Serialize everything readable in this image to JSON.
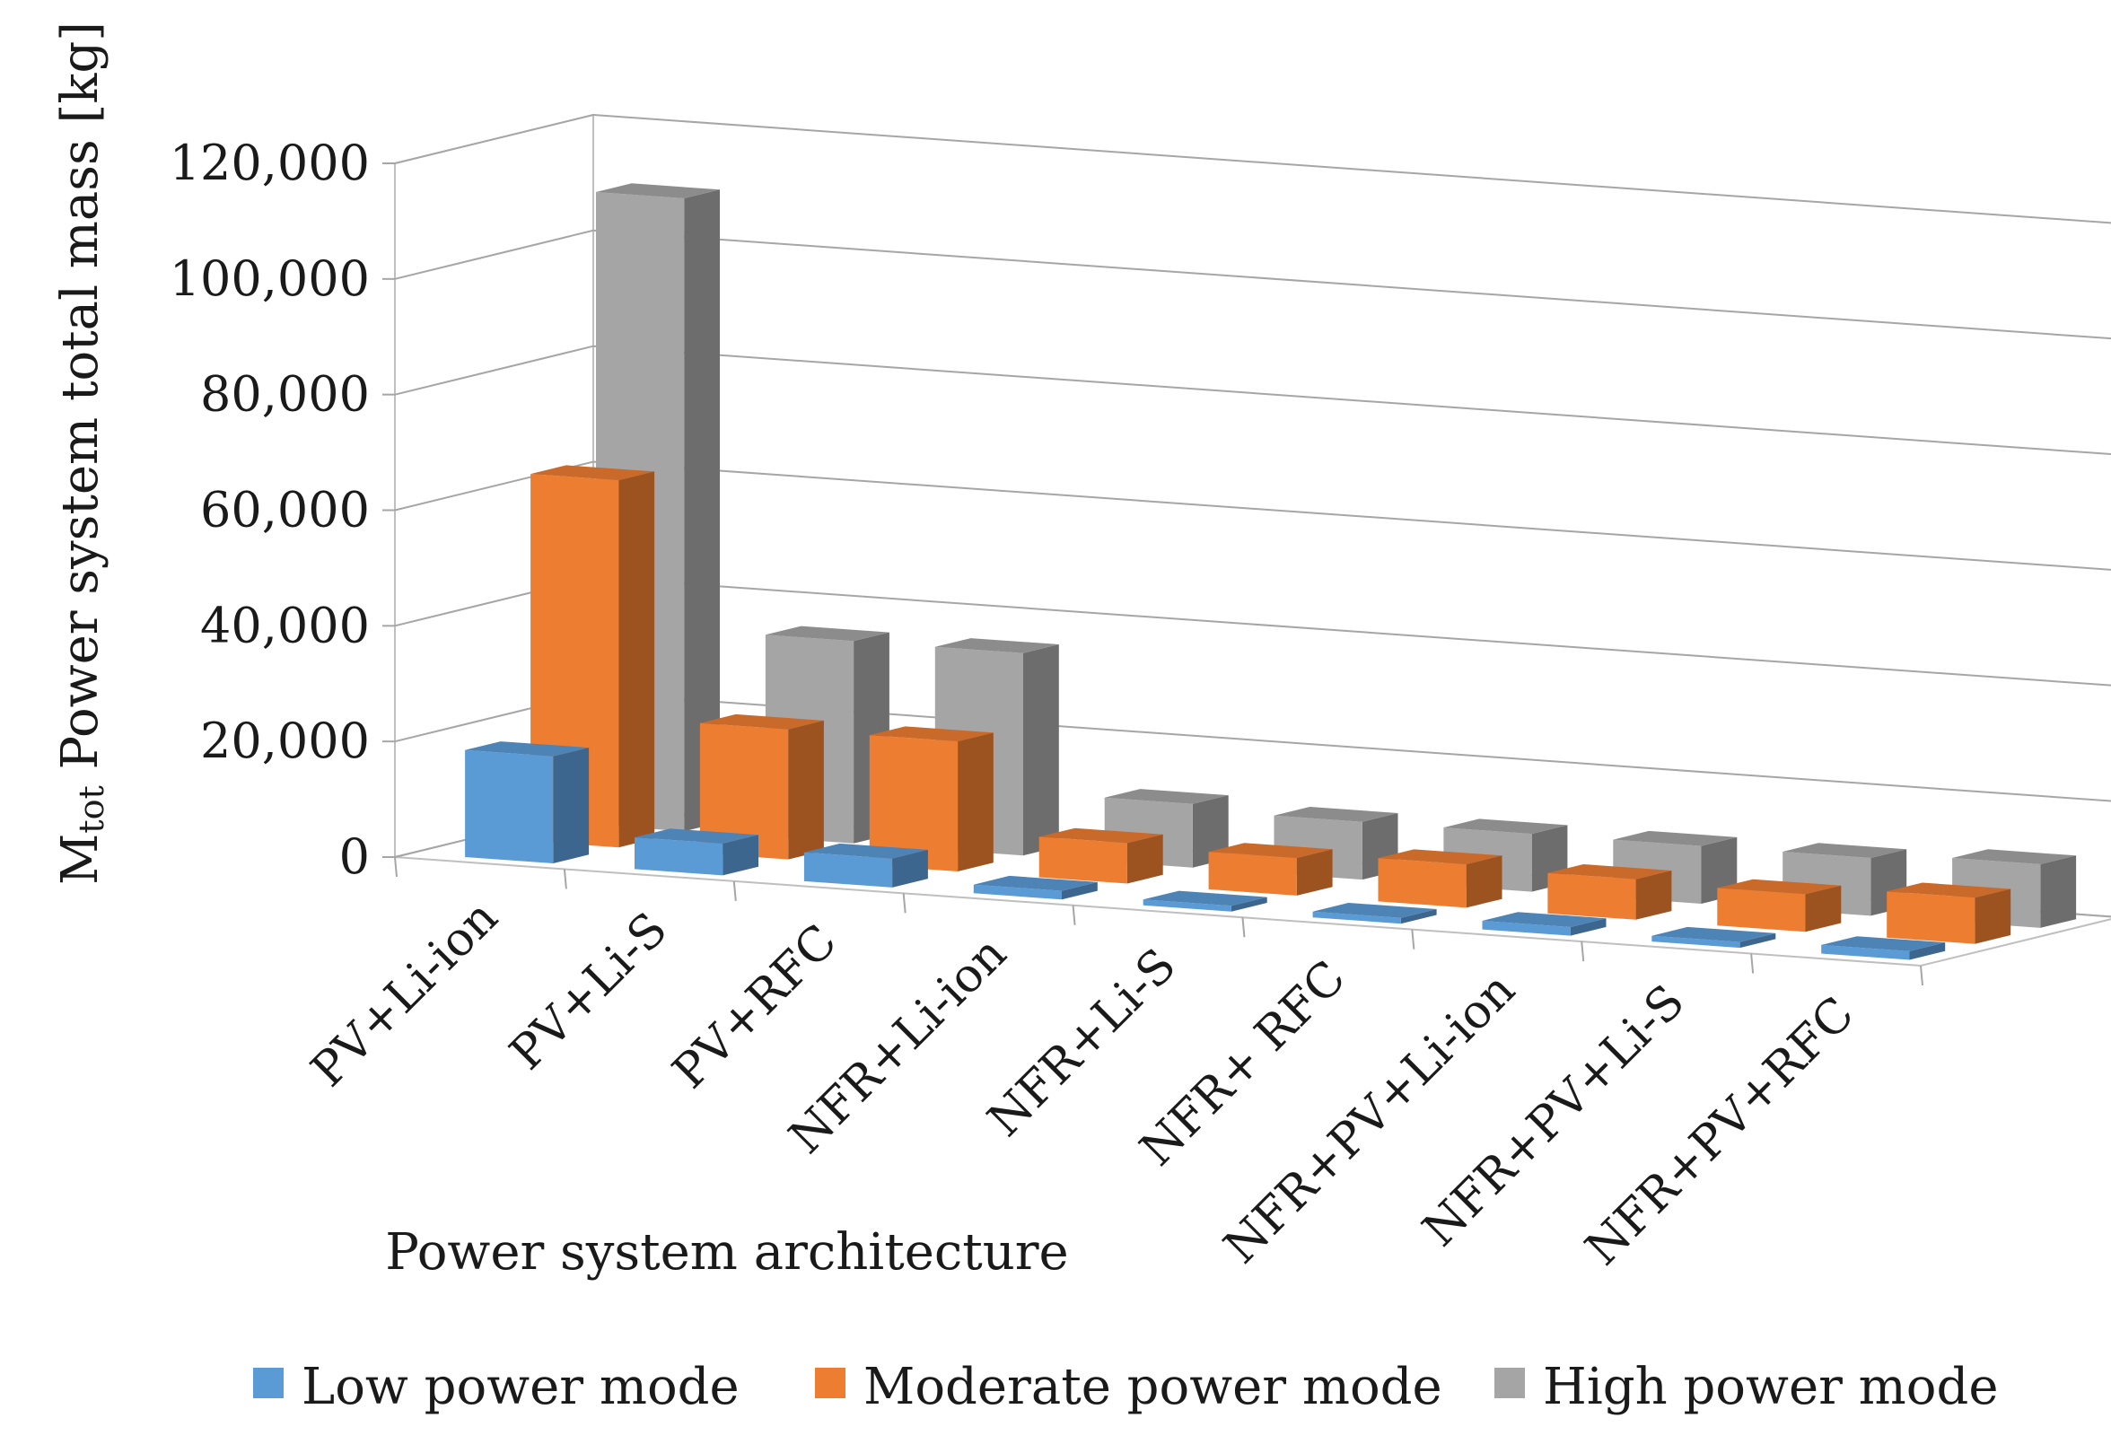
{
  "chart_data": {
    "type": "bar",
    "subtype": "3d-clustered-column",
    "title": "",
    "xlabel": "Power system architecture",
    "ylabel": "M",
    "ylabel_subscript": "tot",
    "ylabel_suffix": " Power system total mass [kg]",
    "ylim": [
      0,
      120000
    ],
    "yticks": [
      {
        "value": 0,
        "label": "0"
      },
      {
        "value": 20000,
        "label": "20,000"
      },
      {
        "value": 40000,
        "label": "40,000"
      },
      {
        "value": 60000,
        "label": "60,000"
      },
      {
        "value": 80000,
        "label": "80,000"
      },
      {
        "value": 100000,
        "label": "100,000"
      },
      {
        "value": 120000,
        "label": "120,000"
      }
    ],
    "grid": true,
    "legend_position": "bottom",
    "categories": [
      "PV+Li-ion",
      "PV+Li-S",
      "PV+RFC",
      "NFR+Li-ion",
      "NFR+Li-S",
      "NFR+ RFC",
      "NFR+PV+Li-ion",
      "NFR+PV+Li-S",
      "NFR+PV+RFC"
    ],
    "series": [
      {
        "name": "Low power mode",
        "color": "#5b9bd5",
        "values": [
          18500,
          5500,
          5000,
          1500,
          1000,
          1000,
          1500,
          1000,
          1500
        ]
      },
      {
        "name": "Moderate power mode",
        "color": "#ed7d31",
        "values": [
          63500,
          22500,
          22500,
          7000,
          6500,
          7500,
          7000,
          6500,
          8000
        ]
      },
      {
        "name": "High power mode",
        "color": "#a5a5a5",
        "values": [
          109500,
          35000,
          35000,
          11000,
          10000,
          10000,
          10000,
          10000,
          11000
        ]
      }
    ]
  }
}
